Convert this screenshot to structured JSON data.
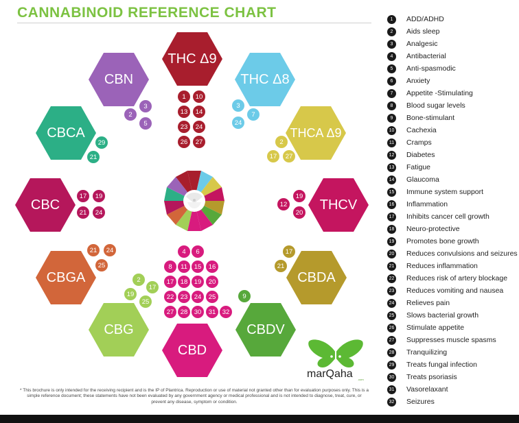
{
  "title": "CANNABINOID REFERENCE CHART",
  "colors": {
    "title": "#7cc242",
    "thc9": "#a81e2d",
    "thc8": "#6ccbe8",
    "thca9": "#d7c84a",
    "thcv": "#c4155f",
    "cbda": "#b59a2c",
    "cbdv": "#57a83b",
    "cbd": "#d81b7e",
    "cbg": "#a2cf57",
    "cbga": "#d2663a",
    "cbc": "#b5175b",
    "cbca": "#2caf86",
    "cbn": "#9b63b8"
  },
  "compounds": {
    "thc9": {
      "name": "THC Δ9",
      "badges": [
        "1",
        "10",
        "13",
        "14",
        "23",
        "24",
        "26",
        "27"
      ]
    },
    "thc8": {
      "name": "THC Δ8",
      "badges": [
        "3",
        "7",
        "24"
      ]
    },
    "thca9": {
      "name": "THCA Δ9",
      "badges": [
        "2",
        "17",
        "27"
      ]
    },
    "thcv": {
      "name": "THCV",
      "badges": [
        "19",
        "12",
        "20"
      ]
    },
    "cbda": {
      "name": "CBDA",
      "badges": [
        "17",
        "21"
      ]
    },
    "cbdv": {
      "name": "CBDV",
      "badges": [
        "9"
      ]
    },
    "cbd": {
      "name": "CBD",
      "badges": [
        "4",
        "6",
        "8",
        "11",
        "15",
        "16",
        "17",
        "18",
        "19",
        "20",
        "22",
        "23",
        "24",
        "25",
        "27",
        "28",
        "30",
        "31",
        "32"
      ]
    },
    "cbg": {
      "name": "CBG",
      "badges": [
        "2",
        "17",
        "19",
        "25"
      ]
    },
    "cbga": {
      "name": "CBGA",
      "badges": [
        "21",
        "24",
        "25"
      ]
    },
    "cbc": {
      "name": "CBC",
      "badges": [
        "17",
        "19",
        "21",
        "24"
      ]
    },
    "cbca": {
      "name": "CBCA",
      "badges": [
        "29",
        "21"
      ]
    },
    "cbn": {
      "name": "CBN",
      "badges": [
        "3",
        "2",
        "5"
      ]
    }
  },
  "legend": [
    {
      "num": "1",
      "label": "ADD/ADHD"
    },
    {
      "num": "2",
      "label": "Aids sleep"
    },
    {
      "num": "3",
      "label": "Analgesic"
    },
    {
      "num": "4",
      "label": "Antibacterial"
    },
    {
      "num": "5",
      "label": "Anti-spasmodic"
    },
    {
      "num": "6",
      "label": "Anxiety"
    },
    {
      "num": "7",
      "label": "Appetite -Stimulating"
    },
    {
      "num": "8",
      "label": "Blood sugar levels"
    },
    {
      "num": "9",
      "label": "Bone-stimulant"
    },
    {
      "num": "10",
      "label": "Cachexia"
    },
    {
      "num": "11",
      "label": "Cramps"
    },
    {
      "num": "12",
      "label": "Diabetes"
    },
    {
      "num": "13",
      "label": "Fatigue"
    },
    {
      "num": "14",
      "label": "Glaucoma"
    },
    {
      "num": "15",
      "label": "Immune system support"
    },
    {
      "num": "16",
      "label": "Inflammation"
    },
    {
      "num": "17",
      "label": "Inhibits cancer cell growth"
    },
    {
      "num": "18",
      "label": "Neuro-protective"
    },
    {
      "num": "19",
      "label": "Promotes bone growth"
    },
    {
      "num": "20",
      "label": "Reduces convulsions and seizures"
    },
    {
      "num": "21",
      "label": "Reduces inflammation"
    },
    {
      "num": "22",
      "label": "Reduces risk of artery blockage"
    },
    {
      "num": "23",
      "label": "Reduces vomiting and nausea"
    },
    {
      "num": "24",
      "label": "Relieves pain"
    },
    {
      "num": "25",
      "label": "Slows bacterial growth"
    },
    {
      "num": "26",
      "label": "Stimulate appetite"
    },
    {
      "num": "27",
      "label": "Suppresses muscle spasms"
    },
    {
      "num": "28",
      "label": "Tranquilizing"
    },
    {
      "num": "29",
      "label": "Treats fungal infection"
    },
    {
      "num": "30",
      "label": "Treats psoriasis"
    },
    {
      "num": "31",
      "label": "Vasorelaxant"
    },
    {
      "num": "32",
      "label": "Seizures"
    }
  ],
  "footnote": "* This brochure is only intended for the receiving recipient and is the IP of Plantrica. Reproduction or use of material not granted other than for evaluation purposes only. This is a simple reference document; these statements have not been evaluated by any government agency or medical professional and is not intended to diagnose, treat, cure, or prevent any disease, symptom or condition.",
  "logo": {
    "brand": "marQaha",
    "small": ".com"
  }
}
